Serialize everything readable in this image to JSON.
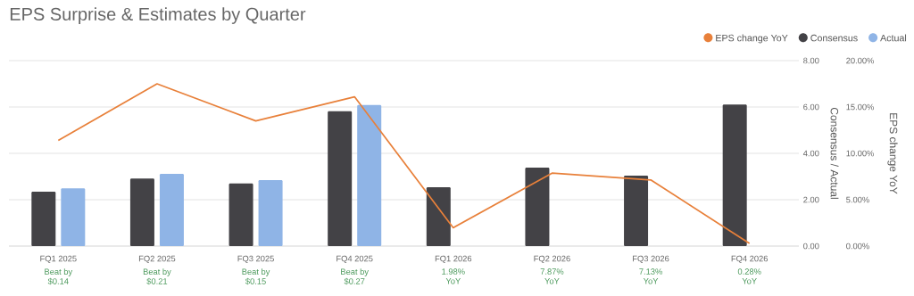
{
  "chart_data": {
    "type": "bar",
    "title": "EPS Surprise & Estimates by Quarter",
    "categories": [
      "FQ1 2025",
      "FQ2 2025",
      "FQ3 2025",
      "FQ4 2025",
      "FQ1 2026",
      "FQ2 2026",
      "FQ3 2026",
      "FQ4 2026"
    ],
    "series": [
      {
        "name": "EPS change YoY",
        "type": "line",
        "axis": "y2",
        "color": "#e8803a",
        "values": [
          11.4,
          17.5,
          13.5,
          16.1,
          1.98,
          7.87,
          7.13,
          0.28
        ]
      },
      {
        "name": "Consensus",
        "color": "#434246",
        "values": [
          2.35,
          2.91,
          2.7,
          5.82,
          2.54,
          3.38,
          3.04,
          6.11
        ]
      },
      {
        "name": "Actual",
        "color": "#8fb4e6",
        "values": [
          2.49,
          3.12,
          2.85,
          6.09,
          null,
          null,
          null,
          null
        ]
      }
    ],
    "ylabel": "Consensus / Actual",
    "y2label": "EPS change YoY",
    "ylim": [
      0,
      8
    ],
    "yticks": [
      {
        "value": 0,
        "label": "0.00"
      },
      {
        "value": 2,
        "label": "2.00"
      },
      {
        "value": 4,
        "label": "4.00"
      },
      {
        "value": 6,
        "label": "6.00"
      },
      {
        "value": 8,
        "label": "8.00"
      }
    ],
    "y2lim": [
      0,
      20
    ],
    "y2ticks": [
      {
        "value": 0,
        "label": "0.00%"
      },
      {
        "value": 5,
        "label": "5.00%"
      },
      {
        "value": 10,
        "label": "10.00%"
      },
      {
        "value": 15,
        "label": "15.00%"
      },
      {
        "value": 20,
        "label": "20.00%"
      }
    ],
    "annotations": [
      "Beat by\n$0.14",
      "Beat by\n$0.21",
      "Beat by\n$0.15",
      "Beat by\n$0.27",
      "1.98%\nYoY",
      "7.87%\nYoY",
      "7.13%\nYoY",
      "0.28%\nYoY"
    ],
    "grid": "y",
    "legend": "top right",
    "marker": "none",
    "line_style": "solid"
  }
}
